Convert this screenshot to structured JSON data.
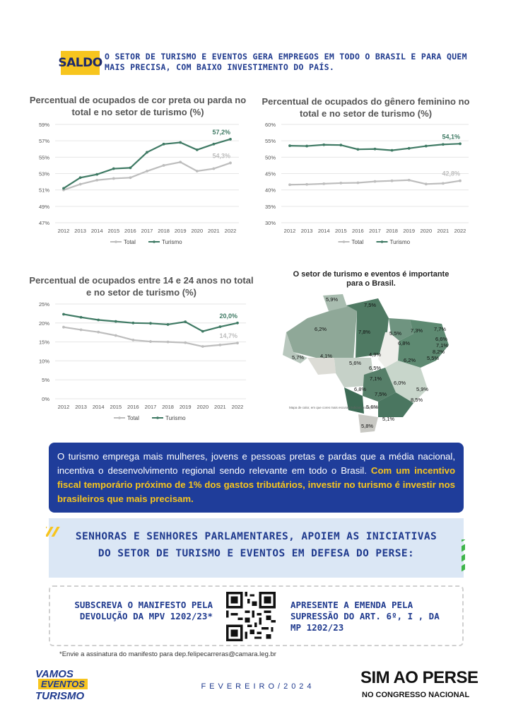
{
  "header": {
    "badge": "SALDO",
    "text": "O SETOR DE TURISMO E EVENTOS GERA EMPREGOS EM TODO O BRASIL E PARA QUEM MAIS PRECISA, COM BAIXO INVESTIMENTO DO PAÍS."
  },
  "colors": {
    "total": "#bdbdbd",
    "turismo": "#3f7a64",
    "navy": "#1f3d9a",
    "yellow": "#f7c51e"
  },
  "chart_data": [
    {
      "type": "line",
      "title": "Percentual de ocupados de cor preta ou parda no total e no setor de turismo (%)",
      "categories": [
        "2012",
        "2013",
        "2014",
        "2015",
        "2016",
        "2017",
        "2018",
        "2019",
        "2020",
        "2021",
        "2022"
      ],
      "yticks": [
        "47%",
        "49%",
        "51%",
        "53%",
        "55%",
        "57%",
        "59%"
      ],
      "ylim": [
        47,
        59
      ],
      "series": [
        {
          "name": "Total",
          "values": [
            51.0,
            51.7,
            52.2,
            52.4,
            52.5,
            53.3,
            54.0,
            54.4,
            53.3,
            53.6,
            54.3
          ],
          "end_label": "54,3%"
        },
        {
          "name": "Turismo",
          "values": [
            51.2,
            52.5,
            52.9,
            53.6,
            53.7,
            55.6,
            56.6,
            56.8,
            55.9,
            56.6,
            57.2
          ],
          "end_label": "57,2%"
        }
      ],
      "legend": "bottom"
    },
    {
      "type": "line",
      "title": "Percentual de ocupados do gênero feminino no total e no setor de turismo (%)",
      "categories": [
        "2012",
        "2013",
        "2014",
        "2015",
        "2016",
        "2017",
        "2018",
        "2019",
        "2020",
        "2021",
        "2022"
      ],
      "yticks": [
        "30%",
        "35%",
        "40%",
        "45%",
        "50%",
        "55%",
        "60%"
      ],
      "ylim": [
        30,
        60
      ],
      "series": [
        {
          "name": "Total",
          "values": [
            41.6,
            41.7,
            41.9,
            42.1,
            42.2,
            42.6,
            42.8,
            43.0,
            41.8,
            42.0,
            42.8
          ],
          "end_label": "42,8%"
        },
        {
          "name": "Turismo",
          "values": [
            53.5,
            53.4,
            53.8,
            53.7,
            52.4,
            52.5,
            52.1,
            52.7,
            53.4,
            53.9,
            54.1
          ],
          "end_label": "54,1%"
        }
      ],
      "legend": "bottom"
    },
    {
      "type": "line",
      "title": "Percentual de ocupados entre 14 e 24 anos no total e no setor de turismo (%)",
      "categories": [
        "2012",
        "2013",
        "2014",
        "2015",
        "2016",
        "2017",
        "2018",
        "2019",
        "2020",
        "2021",
        "2022"
      ],
      "yticks": [
        "0%",
        "5%",
        "10%",
        "15%",
        "20%",
        "25%"
      ],
      "ylim": [
        0,
        25
      ],
      "series": [
        {
          "name": "Total",
          "values": [
            18.9,
            18.2,
            17.6,
            16.7,
            15.5,
            15.1,
            15.0,
            14.8,
            13.8,
            14.2,
            14.7
          ],
          "end_label": "14,7%"
        },
        {
          "name": "Turismo",
          "values": [
            22.3,
            21.5,
            20.8,
            20.4,
            20.0,
            19.9,
            19.6,
            20.3,
            17.8,
            19.0,
            20.0
          ],
          "end_label": "20,0%"
        }
      ],
      "legend": "bottom"
    }
  ],
  "map": {
    "title": "O setor de turismo e eventos é importante para o Brasil.",
    "labels": [
      "5,9%",
      "7,5%",
      "6,2%",
      "7,8%",
      "5,5%",
      "7,3%",
      "7,7%",
      "6,6%",
      "6,8%",
      "7,1%",
      "8,2%",
      "5,5%",
      "5,7%",
      "4,1%",
      "4,9%",
      "6,2%",
      "5,6%",
      "6,5%",
      "7,1%",
      "6,0%",
      "5,9%",
      "6,8%",
      "7,5%",
      "8,5%",
      "5,6%",
      "5,1%",
      "5,8%"
    ],
    "note": "Mapa de calor, em que cores mais escuras indicam maior nível."
  },
  "info": {
    "text": "O turismo emprega mais mulheres, jovens e pessoas pretas e pardas que a média nacional, incentiva o desenvolvimento regional sendo relevante em todo o Brasil.",
    "highlight": "Com um incentivo fiscal temporário próximo de 1% dos gastos tributários, investir no turismo é investir nos brasileiros que mais precisam."
  },
  "appeal": {
    "line1": "SENHORAS E SENHORES PARLAMENTARES, APOIEM AS INICIATIVAS",
    "line2": "DO SETOR DE TURISMO E EVENTOS EM DEFESA DO PERSE:"
  },
  "actions": {
    "left": "SUBSCREVA O MANIFESTO PELA DEVOLUÇÃO DA MPV 1202/23*",
    "right": "APRESENTE A EMENDA PELA SUPRESSÃO DO ART. 6º, I , DA MP 1202/23"
  },
  "footnote": "*Envie a assinatura do manifesto para dep.felipecarreras@camara.leg.br",
  "footer": {
    "date": "FEVEREIRO/2024",
    "logo_left": [
      "VAMOS",
      "EVENTOS",
      "TURISMO"
    ],
    "logo_right": {
      "big": "SIM AO PERSE",
      "small": "NO CONGRESSO NACIONAL"
    }
  }
}
